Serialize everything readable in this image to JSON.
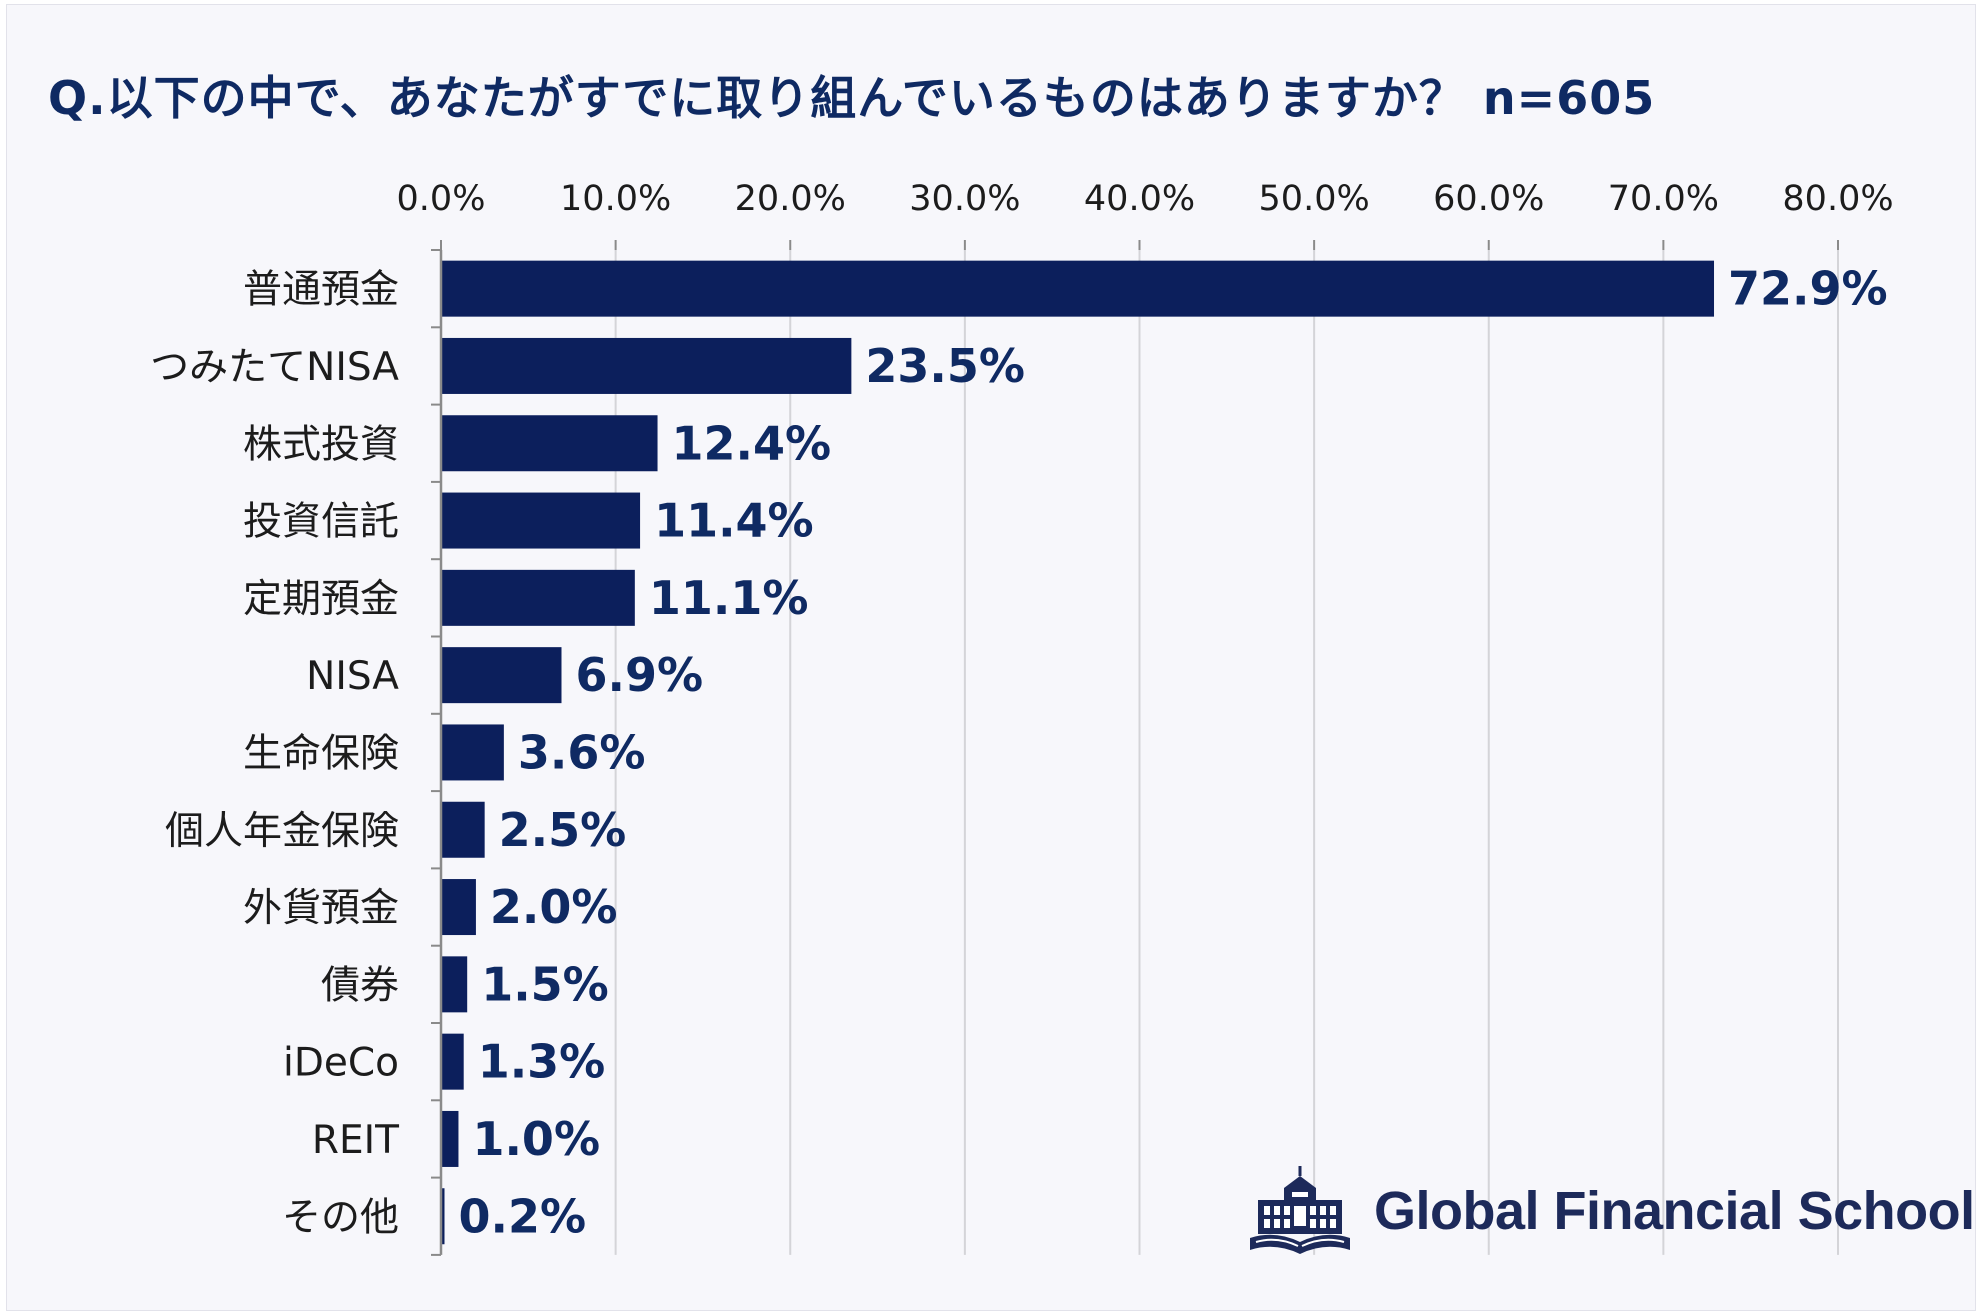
{
  "title": "Q.以下の中で、あなたがすでに取り組んでいるものはありますか？ n=605",
  "brand": {
    "name": "Global Financial School",
    "logo_icon": "school-building-book-icon"
  },
  "colors": {
    "bar": "#0c1f5c",
    "title": "#0f2a63",
    "grid": "#d4d4d8",
    "axis": "#8a8a8a"
  },
  "chart_data": {
    "type": "bar",
    "orientation": "horizontal",
    "categories": [
      "普通預金",
      "つみたてNISA",
      "株式投資",
      "投資信託",
      "定期預金",
      "NISA",
      "生命保険",
      "個人年金保険",
      "外貨預金",
      "債券",
      "iDeCo",
      "REIT",
      "その他"
    ],
    "values": [
      72.9,
      23.5,
      12.4,
      11.4,
      11.1,
      6.9,
      3.6,
      2.5,
      2.0,
      1.5,
      1.3,
      1.0,
      0.2
    ],
    "data_labels": [
      "72.9%",
      "23.5%",
      "12.4%",
      "11.4%",
      "11.1%",
      "6.9%",
      "3.6%",
      "2.5%",
      "2.0%",
      "1.5%",
      "1.3%",
      "1.0%",
      "0.2%"
    ],
    "xlim": [
      0,
      80
    ],
    "xticks": [
      0,
      10,
      20,
      30,
      40,
      50,
      60,
      70,
      80
    ],
    "xtick_labels": [
      "0.0%",
      "10.0%",
      "20.0%",
      "30.0%",
      "40.0%",
      "50.0%",
      "60.0%",
      "70.0%",
      "80.0%"
    ],
    "x_axis_position": "top",
    "grid": true,
    "legend": "none"
  }
}
